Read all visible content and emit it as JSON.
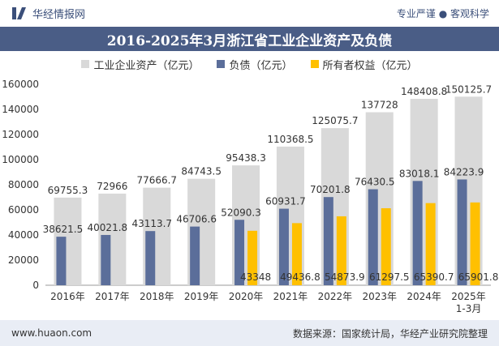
{
  "header": {
    "brand": "华经情报网",
    "slogan": "专业严谨 ● 客观科学"
  },
  "title": "2016-2025年3月浙江省工业企业资产及负债",
  "footer": {
    "website": "www.huaon.com",
    "source": "数据来源：国家统计局，华经产业研究院整理"
  },
  "colors": {
    "title_bar": "#4a5d86",
    "assets": "#d9d9d9",
    "liabilities": "#5b6e9a",
    "equity": "#ffc000"
  },
  "chart_data": {
    "type": "bar",
    "categories": [
      "2016年",
      "2017年",
      "2018年",
      "2019年",
      "2020年",
      "2021年",
      "2022年",
      "2023年",
      "2024年",
      "2025年\n1-3月"
    ],
    "series": [
      {
        "name": "工业企业资产（亿元）",
        "values": [
          69755.3,
          72966,
          77666.7,
          84743.5,
          95438.3,
          110368.5,
          125075.7,
          137728,
          148408.8,
          150125.7
        ],
        "labels": [
          "69755.3",
          "72966",
          "77666.7",
          "84743.5",
          "95438.3",
          "110368.5",
          "125075.7",
          "137728",
          "148408.8",
          "150125.7"
        ]
      },
      {
        "name": "负债（亿元）",
        "values": [
          38621.5,
          40021.8,
          43113.7,
          46706.6,
          52090.3,
          60931.7,
          70201.8,
          76430.5,
          83018.1,
          84223.9
        ],
        "labels": [
          "38621.5",
          "40021.8",
          "43113.7",
          "46706.6",
          "52090.3",
          "60931.7",
          "70201.8",
          "76430.5",
          "83018.1",
          "84223.9"
        ]
      },
      {
        "name": "所有者权益（亿元）",
        "values": [
          null,
          null,
          null,
          null,
          43348,
          49436.8,
          54873.9,
          61297.5,
          65390.7,
          65901.8
        ],
        "labels": [
          "",
          "",
          "",
          "",
          "43348",
          "49436.8",
          "54873.9",
          "61297.5",
          "65390.7",
          "65901.8"
        ]
      }
    ],
    "y_ticks": [
      "0",
      "20000",
      "40000",
      "60000",
      "80000",
      "100000",
      "120000",
      "140000",
      "160000"
    ],
    "ylim": [
      0,
      160000
    ],
    "grid": false,
    "legend_position": "top"
  }
}
